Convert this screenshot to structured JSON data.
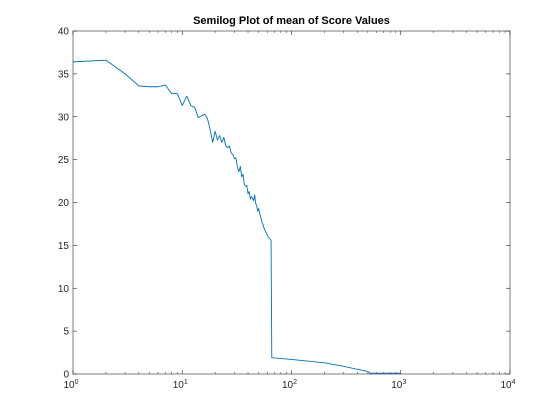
{
  "chart_data": {
    "type": "line",
    "title": "Semilog Plot of mean of Score Values",
    "xlabel": "",
    "ylabel": "",
    "xscale": "log",
    "xlim": [
      1,
      10000
    ],
    "ylim": [
      0,
      40
    ],
    "grid": false,
    "legend": "none",
    "x_ticks": [
      1,
      10,
      100,
      1000,
      10000
    ],
    "x_tick_labels": [
      {
        "base": "10",
        "exp": "0"
      },
      {
        "base": "10",
        "exp": "1"
      },
      {
        "base": "10",
        "exp": "2"
      },
      {
        "base": "10",
        "exp": "3"
      },
      {
        "base": "10",
        "exp": "4"
      }
    ],
    "y_ticks": [
      0,
      5,
      10,
      15,
      20,
      25,
      30,
      35,
      40
    ],
    "y_tick_labels": [
      "0",
      "5",
      "10",
      "15",
      "20",
      "25",
      "30",
      "35",
      "40"
    ],
    "colors": {
      "series": "#0072BD",
      "axes": "#262626",
      "background": "#ffffff"
    },
    "series": [
      {
        "x": [
          1,
          2,
          3,
          4,
          5,
          6,
          7,
          8,
          9,
          10,
          11,
          12,
          13,
          14,
          15,
          16,
          17,
          18,
          19,
          20,
          21,
          22,
          23,
          24,
          25,
          26,
          27,
          28,
          29,
          30,
          31,
          32,
          33,
          34,
          35,
          36,
          37,
          38,
          39,
          40,
          41,
          42,
          43,
          44,
          45,
          46,
          47,
          48,
          49,
          50,
          51,
          52,
          53,
          54,
          55,
          56,
          57,
          58,
          59,
          60,
          61,
          62,
          63,
          64,
          65,
          66,
          100,
          200,
          300,
          400,
          500,
          520,
          600,
          700,
          800,
          1000
        ],
        "y": [
          36.4,
          36.6,
          35.0,
          33.6,
          33.5,
          33.5,
          33.7,
          32.7,
          32.7,
          31.3,
          32.4,
          31.3,
          31.1,
          29.9,
          30.1,
          30.3,
          29.8,
          28.5,
          27.0,
          28.3,
          27.3,
          27.8,
          27.0,
          27.6,
          26.6,
          26.4,
          26.6,
          25.8,
          25.6,
          25.1,
          25.2,
          24.1,
          23.6,
          24.2,
          23.0,
          23.3,
          22.1,
          21.9,
          22.0,
          21.0,
          21.3,
          20.4,
          20.7,
          20.5,
          20.2,
          20.9,
          19.9,
          19.6,
          19.0,
          19.3,
          18.8,
          18.4,
          18.0,
          17.6,
          17.4,
          17.0,
          16.8,
          16.6,
          16.4,
          16.2,
          16.0,
          15.9,
          15.8,
          15.7,
          15.6,
          1.9,
          1.7,
          1.3,
          0.9,
          0.55,
          0.3,
          0.1,
          0.1,
          0.1,
          0.1,
          0.1
        ]
      }
    ]
  }
}
